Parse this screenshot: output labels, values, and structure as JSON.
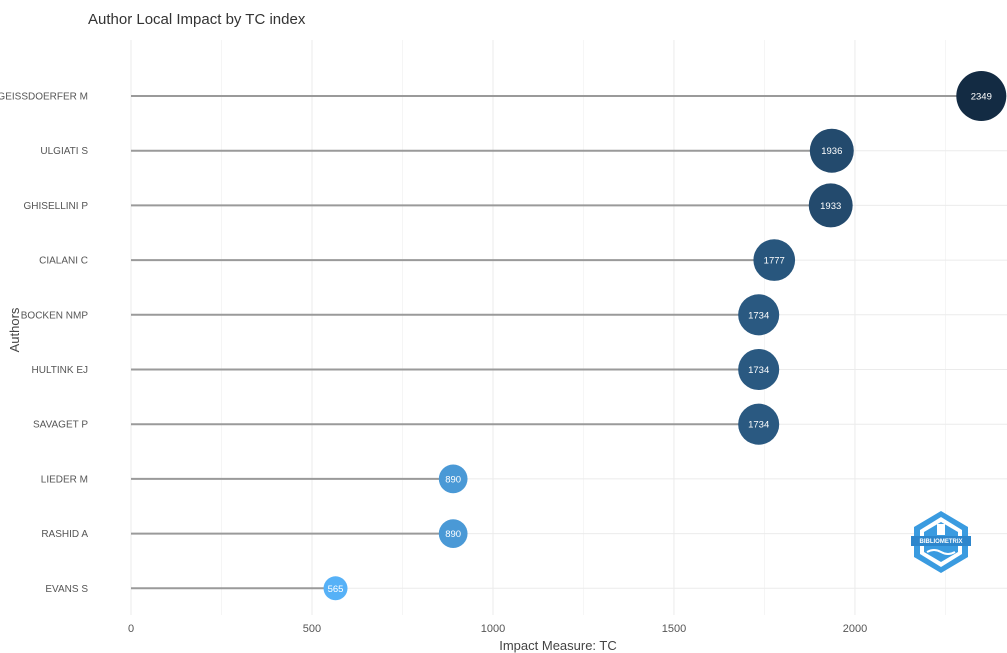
{
  "chart_data": {
    "type": "lollipop",
    "title": "Author Local Impact by TC index",
    "xlabel": "Impact Measure: TC",
    "ylabel": "Authors",
    "xlim": [
      0,
      2420
    ],
    "xticks": [
      0,
      500,
      1000,
      1500,
      2000
    ],
    "grid": true,
    "categories": [
      "GEISSDOERFER M",
      "ULGIATI S",
      "GHISELLINI P",
      "CIALANI C",
      "BOCKEN NMP",
      "HULTINK EJ",
      "SAVAGET P",
      "LIEDER M",
      "RASHID A",
      "EVANS S"
    ],
    "values": [
      2349,
      1936,
      1933,
      1777,
      1734,
      1734,
      1734,
      890,
      890,
      565
    ],
    "colors": {
      "low": "#56B1F7",
      "high": "#132B43",
      "stem": "#9a9a9a",
      "grid": "#ebebeb"
    }
  },
  "logo": {
    "text": "BIBLIOMETRIX",
    "color": "#3a9be0"
  }
}
